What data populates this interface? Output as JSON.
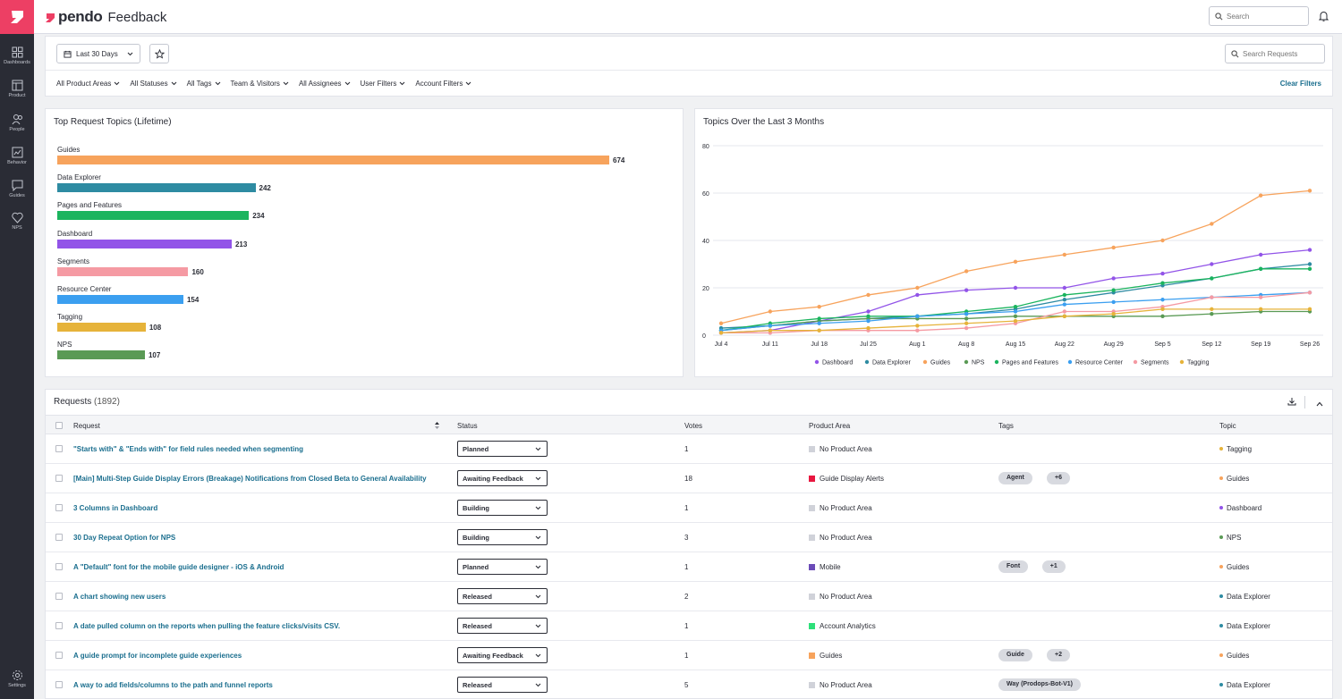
{
  "app": {
    "brand": "pendo",
    "product": "Feedback"
  },
  "nav": [
    {
      "label": "Dashboards",
      "icon": "dashboards-icon"
    },
    {
      "label": "Product",
      "icon": "product-icon"
    },
    {
      "label": "People",
      "icon": "people-icon"
    },
    {
      "label": "Behavior",
      "icon": "behavior-icon"
    },
    {
      "label": "Guides",
      "icon": "guides-icon"
    },
    {
      "label": "NPS",
      "icon": "nps-icon"
    },
    {
      "label": "Settings",
      "icon": "settings-icon"
    }
  ],
  "header": {
    "search_placeholder": "Search"
  },
  "filters": {
    "date_range": "Last 30 Days",
    "search_placeholder": "Search Requests",
    "dropdowns": [
      "All Product Areas",
      "All Statuses",
      "All Tags",
      "Team & Visitors",
      "All Assignees",
      "User Filters",
      "Account Filters"
    ],
    "clear_label": "Clear Filters"
  },
  "top_topics": {
    "title": "Top Request Topics (Lifetime)",
    "chart_data": {
      "type": "bar",
      "orientation": "horizontal",
      "categories": [
        "Guides",
        "Data Explorer",
        "Pages and Features",
        "Dashboard",
        "Segments",
        "Resource Center",
        "Tagging",
        "NPS"
      ],
      "values": [
        674,
        242,
        234,
        213,
        160,
        154,
        108,
        107
      ],
      "colors": [
        "#f7a35c",
        "#2e8ba2",
        "#1bb45e",
        "#9254e8",
        "#f59aa3",
        "#3b9ff0",
        "#e6b33a",
        "#5a9a55"
      ]
    }
  },
  "topics_over_time": {
    "title": "Topics Over the Last 3 Months",
    "chart_data": {
      "type": "line",
      "x": [
        "Jul 4",
        "Jul 11",
        "Jul 18",
        "Jul 25",
        "Aug 1",
        "Aug 8",
        "Aug 15",
        "Aug 22",
        "Aug 29",
        "Sep 5",
        "Sep 12",
        "Sep 19",
        "Sep 26"
      ],
      "ylim": [
        0,
        80
      ],
      "yticks": [
        0,
        20,
        40,
        60,
        80
      ],
      "grid": true,
      "legend": "bottom",
      "series": [
        {
          "name": "Dashboard",
          "color": "#9254e8",
          "values": [
            1,
            2,
            6,
            10,
            17,
            19,
            20,
            20,
            24,
            26,
            30,
            34,
            36
          ]
        },
        {
          "name": "Data Explorer",
          "color": "#2e8ba2",
          "values": [
            3,
            4,
            6,
            7,
            8,
            9,
            11,
            15,
            18,
            21,
            24,
            28,
            30
          ]
        },
        {
          "name": "Guides",
          "color": "#f7a35c",
          "values": [
            5,
            10,
            12,
            17,
            20,
            27,
            31,
            34,
            37,
            40,
            47,
            59,
            61
          ]
        },
        {
          "name": "NPS",
          "color": "#5a9a55",
          "values": [
            2,
            4,
            6,
            7,
            7,
            7,
            8,
            8,
            8,
            8,
            9,
            10,
            10
          ]
        },
        {
          "name": "Pages and Features",
          "color": "#1bb45e",
          "values": [
            2,
            5,
            7,
            8,
            8,
            10,
            12,
            17,
            19,
            22,
            24,
            28,
            28
          ]
        },
        {
          "name": "Resource Center",
          "color": "#3b9ff0",
          "values": [
            2,
            4,
            5,
            6,
            8,
            9,
            10,
            13,
            14,
            15,
            16,
            17,
            18
          ]
        },
        {
          "name": "Segments",
          "color": "#f59aa3",
          "values": [
            1,
            1,
            2,
            2,
            2,
            3,
            5,
            10,
            10,
            12,
            16,
            16,
            18
          ]
        },
        {
          "name": "Tagging",
          "color": "#e6b33a",
          "values": [
            1,
            2,
            2,
            3,
            4,
            5,
            6,
            8,
            9,
            11,
            11,
            11,
            11
          ]
        }
      ]
    }
  },
  "requests": {
    "title": "Requests",
    "count": "(1892)",
    "columns": {
      "request": "Request",
      "status": "Status",
      "votes": "Votes",
      "product_area": "Product Area",
      "tags": "Tags",
      "topic": "Topic"
    },
    "rows": [
      {
        "request": "\"Starts with\" & \"Ends with\" for field rules needed when segmenting",
        "status": "Planned",
        "votes": "1",
        "area": "No Product Area",
        "area_color": "#d0d2d9",
        "tags": [],
        "topic": "Tagging",
        "topic_color": "#e6b33a"
      },
      {
        "request": "[Main] Multi-Step Guide Display Errors (Breakage) Notifications from Closed Beta to General Availability",
        "status": "Awaiting Feedback",
        "votes": "18",
        "area": "Guide Display Alerts",
        "area_color": "#e8173f",
        "tags": [
          "Agent",
          "+6"
        ],
        "topic": "Guides",
        "topic_color": "#f7a35c"
      },
      {
        "request": "3 Columns in Dashboard",
        "status": "Building",
        "votes": "1",
        "area": "No Product Area",
        "area_color": "#d0d2d9",
        "tags": [],
        "topic": "Dashboard",
        "topic_color": "#9254e8"
      },
      {
        "request": "30 Day Repeat Option for NPS",
        "status": "Building",
        "votes": "3",
        "area": "No Product Area",
        "area_color": "#d0d2d9",
        "tags": [],
        "topic": "NPS",
        "topic_color": "#5a9a55"
      },
      {
        "request": "A \"Default\" font for the mobile guide designer - iOS & Android",
        "status": "Planned",
        "votes": "1",
        "area": "Mobile",
        "area_color": "#6b4bb8",
        "tags": [
          "Font",
          "+1"
        ],
        "topic": "Guides",
        "topic_color": "#f7a35c"
      },
      {
        "request": "A chart showing new users",
        "status": "Released",
        "votes": "2",
        "area": "No Product Area",
        "area_color": "#d0d2d9",
        "tags": [],
        "topic": "Data Explorer",
        "topic_color": "#2e8ba2"
      },
      {
        "request": "A date pulled column on the reports when pulling the feature clicks/visits CSV.",
        "status": "Released",
        "votes": "1",
        "area": "Account Analytics",
        "area_color": "#2ee07a",
        "tags": [],
        "topic": "Data Explorer",
        "topic_color": "#2e8ba2"
      },
      {
        "request": "A guide prompt for incomplete guide experiences",
        "status": "Awaiting Feedback",
        "votes": "1",
        "area": "Guides",
        "area_color": "#f7a35c",
        "tags": [
          "Guide",
          "+2"
        ],
        "topic": "Guides",
        "topic_color": "#f7a35c"
      },
      {
        "request": "A way to add fields/columns to the path and funnel reports",
        "status": "Released",
        "votes": "5",
        "area": "No Product Area",
        "area_color": "#d0d2d9",
        "tags": [
          "Way (Prodops-Bot-V1)"
        ],
        "topic": "Data Explorer",
        "topic_color": "#2e8ba2"
      }
    ]
  }
}
